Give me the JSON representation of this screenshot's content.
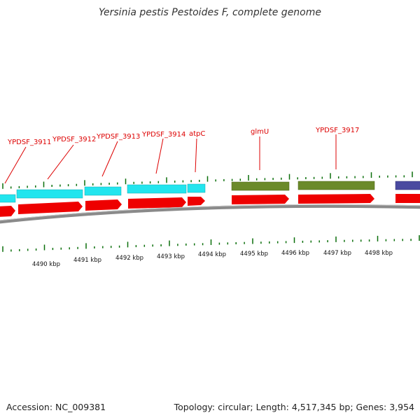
{
  "title": "Yersinia pestis Pestoides F, complete genome",
  "footer": {
    "accession": "Accession: NC_009381",
    "summary": "Topology: circular; Length: 4,517,345 bp; Genes: 3,954"
  },
  "colors": {
    "gene_label": "#dd0000",
    "tick": "#0a6e0a",
    "backbone": "#8a8a8a",
    "cds": "#ee0000",
    "feature_cyan": "#22e5ee",
    "feature_olive": "#6b8a2a",
    "feature_purple": "#4a4aa0"
  },
  "gene_labels": [
    "YPDSF_3911",
    "YPDSF_3912",
    "YPDSF_3913",
    "YPDSF_3914",
    "atpC",
    "glmU",
    "YPDSF_3917"
  ],
  "kbp_labels": [
    "4490 kbp",
    "4491 kbp",
    "4492 kbp",
    "4493 kbp",
    "4494 kbp",
    "4495 kbp",
    "4496 kbp",
    "4497 kbp",
    "4498 kbp"
  ]
}
